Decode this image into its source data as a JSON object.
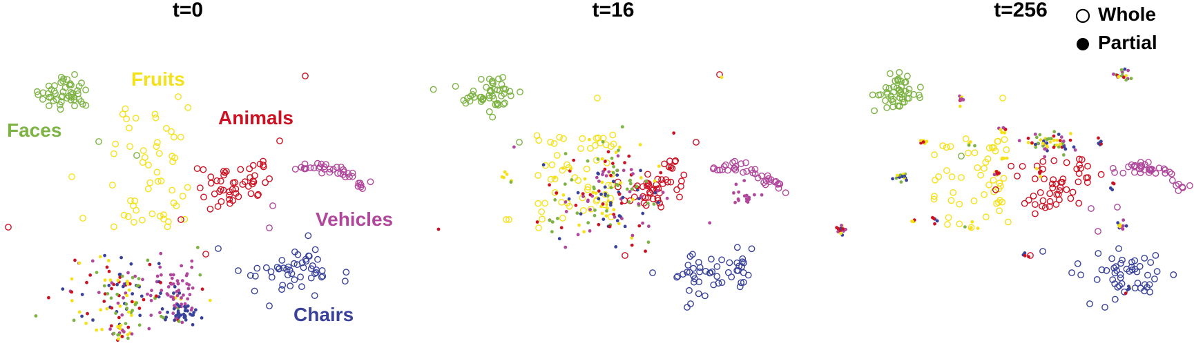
{
  "figure": {
    "legend": {
      "whole_label": "Whole",
      "partial_label": "Partial",
      "placement": "top-right"
    }
  },
  "chart_data": {
    "type": "scatter",
    "panels": [
      {
        "title": "t=0",
        "class_labels": [
          {
            "name": "Faces",
            "color": "#7cb342"
          },
          {
            "name": "Fruits",
            "color": "#f5e11a"
          },
          {
            "name": "Animals",
            "color": "#cc1122"
          },
          {
            "name": "Vehicles",
            "color": "#b0479c"
          },
          {
            "name": "Chairs",
            "color": "#39429a"
          }
        ]
      },
      {
        "title": "t=16"
      },
      {
        "title": "t=256"
      }
    ],
    "colors": {
      "Faces": "#7cb342",
      "Fruits": "#f5e11a",
      "Animals": "#cc1122",
      "Vehicles": "#b0479c",
      "Chairs": "#39429a"
    },
    "marker_types": [
      "Whole",
      "Partial"
    ]
  }
}
